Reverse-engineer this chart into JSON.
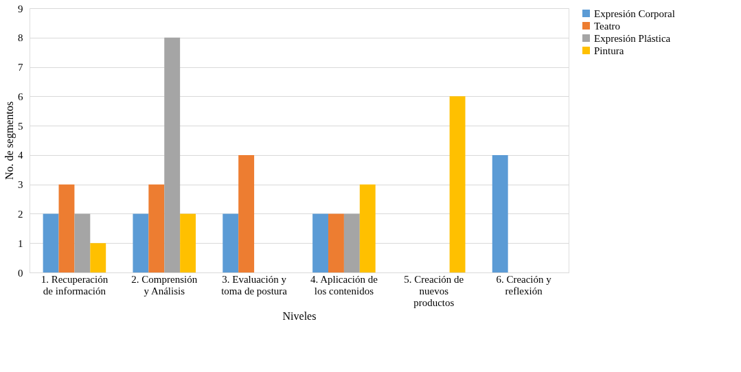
{
  "chart_data": {
    "type": "bar",
    "xlabel": "Niveles",
    "ylabel": "No. de segmentos",
    "categories": [
      "1. Recuperación\nde información",
      "2. Comprensión\ny Análisis",
      "3. Evaluación y\ntoma de postura",
      "4. Aplicación de\nlos contenidos",
      "5. Creación de\nnuevos\nproductos",
      "6. Creación y\nreflexión"
    ],
    "series": [
      {
        "name": "Expresión Corporal",
        "color": "#5b9bd5",
        "values": [
          2,
          2,
          2,
          2,
          null,
          4
        ]
      },
      {
        "name": "Teatro",
        "color": "#ed7d31",
        "values": [
          3,
          3,
          4,
          2,
          null,
          null
        ]
      },
      {
        "name": "Expresión Plástica",
        "color": "#a5a5a5",
        "values": [
          2,
          8,
          null,
          2,
          null,
          null
        ]
      },
      {
        "name": "Pintura",
        "color": "#ffc000",
        "values": [
          1,
          2,
          null,
          3,
          6,
          null
        ]
      }
    ],
    "ylim": [
      0,
      9
    ],
    "yticks": [
      0,
      1,
      2,
      3,
      4,
      5,
      6,
      7,
      8,
      9
    ],
    "grid": "y",
    "legend": "right"
  }
}
